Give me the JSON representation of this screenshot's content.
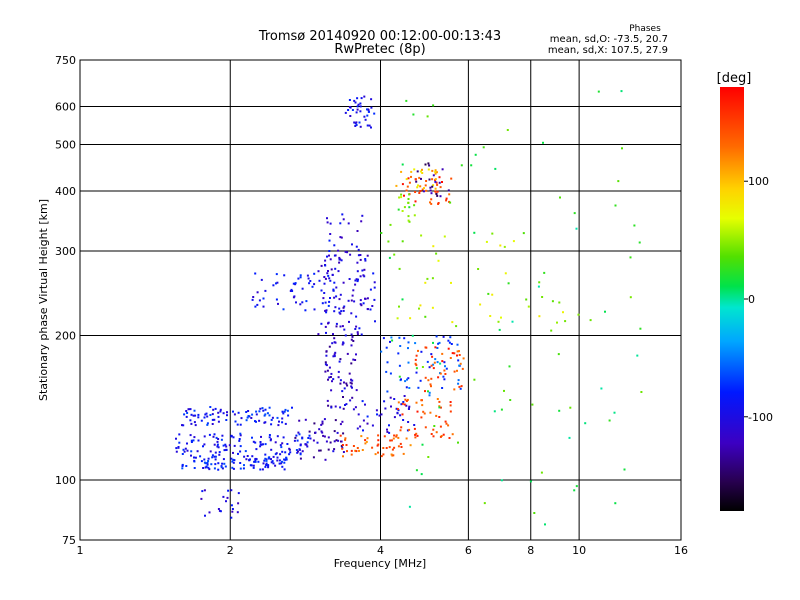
{
  "chart_data": {
    "type": "scatter",
    "title": "Tromsø 20140920 00:12:00-00:13:43",
    "subtitle": "RwPretec (8p)",
    "xlabel": "Frequency [MHz]",
    "ylabel": "Stationary phase Virtual Height [km]",
    "x_scale": "log",
    "y_scale": "log",
    "xlim": [
      1,
      16
    ],
    "ylim": [
      75,
      750
    ],
    "x_ticks": [
      1,
      2,
      4,
      6,
      8,
      10,
      16
    ],
    "y_ticks": [
      75,
      100,
      200,
      300,
      400,
      500,
      600,
      750
    ],
    "grid": true,
    "legend": {
      "title": "Phases",
      "lines": [
        "mean, sd,O: -73.5, 20.7",
        "mean, sd,X: 107.5, 27.9"
      ]
    },
    "colorbar": {
      "label": "[deg]",
      "range": [
        -180,
        180
      ],
      "ticks": [
        100,
        0,
        -100
      ],
      "colormap": "rainbow (black-purple-blue-cyan-green-yellow-orange-red)"
    },
    "point_groups": [
      {
        "name": "",
        "x_range": [
          1.6,
          2.6
        ],
        "h_range": [
          105,
          113
        ],
        "phase": -85,
        "count": 110
      },
      {
        "name": "",
        "x_range": [
          1.55,
          2.9
        ],
        "h_range": [
          113,
          125
        ],
        "phase": -90,
        "count": 110
      },
      {
        "name": "",
        "x_range": [
          1.6,
          2.7
        ],
        "h_range": [
          130,
          142
        ],
        "phase": -85,
        "count": 90
      },
      {
        "name": "",
        "x_range": [
          2.7,
          3.4
        ],
        "h_range": [
          110,
          135
        ],
        "phase": -120,
        "count": 50
      },
      {
        "name": "",
        "x_range": [
          3.1,
          3.6
        ],
        "h_range": [
          140,
          200
        ],
        "phase": -115,
        "count": 70
      },
      {
        "name": "",
        "x_range": [
          3.0,
          3.9
        ],
        "h_range": [
          200,
          300
        ],
        "phase": -105,
        "count": 110
      },
      {
        "name": "",
        "x_range": [
          3.1,
          3.7
        ],
        "h_range": [
          300,
          360
        ],
        "phase": -100,
        "count": 20
      },
      {
        "name": "",
        "x_range": [
          2.2,
          3.3
        ],
        "h_range": [
          225,
          270
        ],
        "phase": -90,
        "count": 60
      },
      {
        "name": "",
        "x_range": [
          3.6,
          4.7
        ],
        "h_range": [
          125,
          150
        ],
        "phase": -100,
        "count": 40
      },
      {
        "name": "",
        "x_range": [
          3.3,
          4.6
        ],
        "h_range": [
          112,
          124
        ],
        "phase": 140,
        "count": 50
      },
      {
        "name": "",
        "x_range": [
          4.3,
          5.6
        ],
        "h_range": [
          122,
          148
        ],
        "phase": 145,
        "count": 50
      },
      {
        "name": "",
        "x_range": [
          4.0,
          5.8
        ],
        "h_range": [
          150,
          200
        ],
        "phase": -70,
        "count": 60
      },
      {
        "name": "",
        "x_range": [
          4.6,
          5.9
        ],
        "h_range": [
          150,
          190
        ],
        "phase": 150,
        "count": 40
      },
      {
        "name": "",
        "x_range": [
          4.4,
          5.6
        ],
        "h_range": [
          375,
          430
        ],
        "phase": 150,
        "count": 40
      },
      {
        "name": "",
        "x_range": [
          4.3,
          5.2
        ],
        "h_range": [
          400,
          445
        ],
        "phase": 100,
        "count": 20
      },
      {
        "name": "",
        "x_range": [
          4.3,
          4.7
        ],
        "h_range": [
          345,
          395
        ],
        "phase": 40,
        "count": 15
      },
      {
        "name": "",
        "x_range": [
          4.7,
          5.5
        ],
        "h_range": [
          390,
          460
        ],
        "phase": -130,
        "count": 20
      },
      {
        "name": "",
        "x_range": [
          3.4,
          3.9
        ],
        "h_range": [
          540,
          630
        ],
        "phase": -95,
        "count": 40
      },
      {
        "name": "",
        "x_range": [
          1.75,
          2.1
        ],
        "h_range": [
          83,
          96
        ],
        "phase": -100,
        "count": 20
      },
      {
        "name": "",
        "x_range": [
          4.2,
          10
        ],
        "h_range": [
          200,
          330
        ],
        "phase": 60,
        "count": 40
      },
      {
        "name": "",
        "x_range": [
          4.0,
          14
        ],
        "h_range": [
          80,
          650
        ],
        "phase": 20,
        "count": 90
      }
    ]
  }
}
